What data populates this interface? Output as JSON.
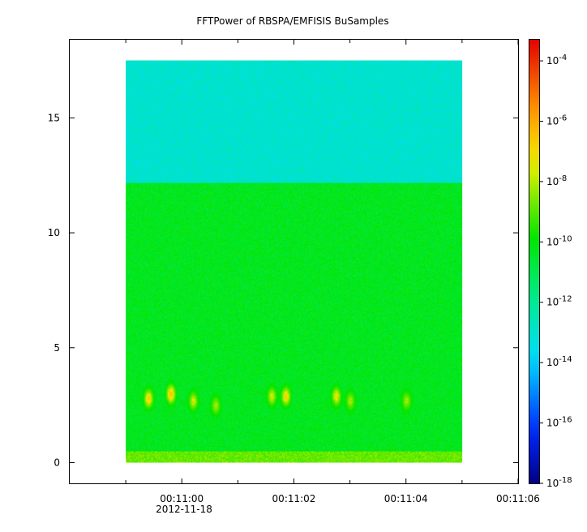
{
  "chart_data": {
    "type": "heatmap",
    "title": "FFTPower of RBSPA/EMFISIS  BuSamples",
    "date_label": "2012-11-18",
    "x_ticks": [
      {
        "t": 0,
        "label": "00:11:00"
      },
      {
        "t": 2,
        "label": "00:11:02"
      },
      {
        "t": 4,
        "label": "00:11:04"
      },
      {
        "t": 6,
        "label": "00:11:06"
      }
    ],
    "x_minor_ticks": [
      -1,
      1,
      3,
      5
    ],
    "xlim": [
      -2.0,
      6.0
    ],
    "data_x_range": [
      -1.0,
      5.0
    ],
    "y_ticks": [
      0,
      5,
      10,
      15
    ],
    "ylim": [
      -0.9,
      18.4
    ],
    "data_y_range": [
      0.0,
      17.5
    ],
    "band_boundary_y": 12.2,
    "colorbar": {
      "scale": "log",
      "range_exp": [
        -18,
        -3.3
      ],
      "ticks": [
        {
          "base": "10",
          "exp": "-4"
        },
        {
          "base": "10",
          "exp": "-6"
        },
        {
          "base": "10",
          "exp": "-8"
        },
        {
          "base": "10",
          "exp": "-10"
        },
        {
          "base": "10",
          "exp": "-12"
        },
        {
          "base": "10",
          "exp": "-14"
        },
        {
          "base": "10",
          "exp": "-16"
        },
        {
          "base": "10",
          "exp": "-18"
        }
      ]
    },
    "features": [
      {
        "name": "upper band",
        "y_range": [
          12.2,
          17.5
        ],
        "log_power": -13.0
      },
      {
        "name": "lower band",
        "y_range": [
          0.5,
          12.2
        ],
        "log_power": -10.3
      },
      {
        "name": "low-frequency strip",
        "y_range": [
          0.0,
          0.5
        ],
        "log_power": -8.8
      },
      {
        "name": "burst",
        "t": -0.6,
        "y": 2.8,
        "log_power": -6.5
      },
      {
        "name": "burst",
        "t": -0.2,
        "y": 3.0,
        "log_power": -6.0
      },
      {
        "name": "burst",
        "t": 0.2,
        "y": 2.7,
        "log_power": -7.5
      },
      {
        "name": "burst",
        "t": 0.6,
        "y": 2.5,
        "log_power": -8.0
      },
      {
        "name": "burst",
        "t": 1.6,
        "y": 2.9,
        "log_power": -7.5
      },
      {
        "name": "burst",
        "t": 1.85,
        "y": 2.9,
        "log_power": -6.5
      },
      {
        "name": "burst",
        "t": 2.75,
        "y": 2.9,
        "log_power": -7.0
      },
      {
        "name": "burst",
        "t": 3.0,
        "y": 2.7,
        "log_power": -8.0
      },
      {
        "name": "burst",
        "t": 4.0,
        "y": 2.7,
        "log_power": -8.0
      }
    ]
  }
}
